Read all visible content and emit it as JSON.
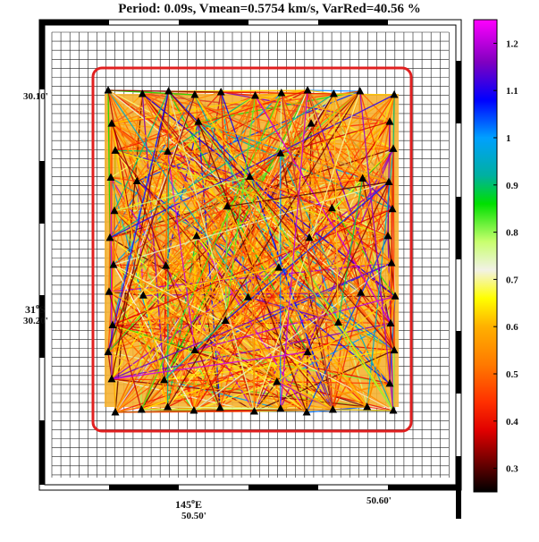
{
  "title": "Period: 0.09s, Vmean=0.5754 km/s, VarRed=40.56 %",
  "map": {
    "lat_label_top": "30.10'",
    "lat_label_mid_deg": "31",
    "lat_label_mid_hemi": "S",
    "lat_label_mid_min": "30.20'",
    "lon_label_left_deg": "145",
    "lon_label_left_hemi": "E",
    "lon_label_left_min": "50.50'",
    "lon_label_right": "50.60'",
    "degree_symbol": "o"
  },
  "chart_data": {
    "type": "ray-path map",
    "period_s": 0.09,
    "vmean_km_s": 0.5754,
    "varred_percent": 40.56,
    "colorbar": {
      "min": 0.25,
      "max": 1.25,
      "ticks": [
        0.3,
        0.4,
        0.5,
        0.6,
        0.7,
        0.8,
        0.9,
        1,
        1.1,
        1.2
      ],
      "tick_labels": [
        "0.3",
        "0.4",
        "0.5",
        "0.6",
        "0.7",
        "0.8",
        "0.9",
        "1",
        "1.1",
        "1.2"
      ],
      "stops": [
        {
          "v": 0.25,
          "c": "#000000"
        },
        {
          "v": 0.32,
          "c": "#7a0000"
        },
        {
          "v": 0.38,
          "c": "#e00000"
        },
        {
          "v": 0.44,
          "c": "#ff3000"
        },
        {
          "v": 0.52,
          "c": "#ff7a00"
        },
        {
          "v": 0.6,
          "c": "#ffb000"
        },
        {
          "v": 0.66,
          "c": "#ffff00"
        },
        {
          "v": 0.72,
          "c": "#f2f2e6"
        },
        {
          "v": 0.78,
          "c": "#c8ff6e"
        },
        {
          "v": 0.86,
          "c": "#00e000"
        },
        {
          "v": 0.92,
          "c": "#00b0a0"
        },
        {
          "v": 1.0,
          "c": "#00a0ff"
        },
        {
          "v": 1.08,
          "c": "#0000ff"
        },
        {
          "v": 1.16,
          "c": "#8000c0"
        },
        {
          "v": 1.25,
          "c": "#ff00ff"
        }
      ]
    },
    "stations": {
      "marker": "triangle",
      "color": "#000000",
      "columns": 11,
      "rows": 12
    },
    "boundary_color": "#e02020",
    "grid": true,
    "coverage_fill": "#f5b030"
  }
}
